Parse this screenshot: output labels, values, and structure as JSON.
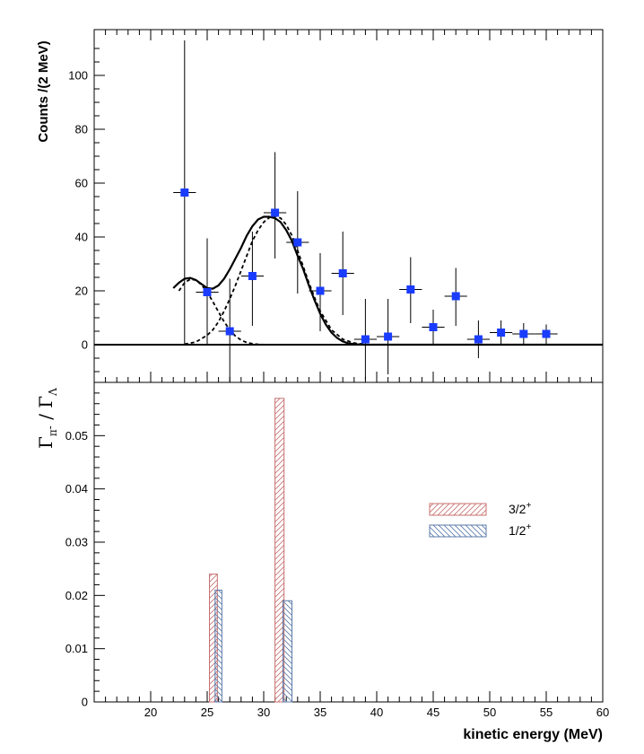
{
  "chart_data": [
    {
      "type": "scatter",
      "ylabel": "Counts /(2 MeV)",
      "xlim": [
        15,
        60
      ],
      "ylim": [
        -14,
        117
      ],
      "y_ticks": [
        0,
        20,
        40,
        60,
        80,
        100
      ],
      "y_tick_labels": [
        "0",
        "20",
        "40",
        "60",
        "80",
        "100"
      ],
      "series": [
        {
          "kind": "points_with_errors",
          "color": "#1a3cff",
          "x": [
            23,
            25,
            27,
            29,
            31,
            33,
            35,
            37,
            39,
            41,
            43,
            45,
            47,
            49,
            51,
            53,
            55
          ],
          "y": [
            56.5,
            19.5,
            5,
            25.5,
            49,
            38,
            20,
            26.5,
            2,
            3,
            20.5,
            6.5,
            18,
            2,
            4.5,
            4,
            4
          ],
          "y_low": [
            0,
            0,
            -14,
            7,
            32,
            19,
            5,
            11,
            -13,
            -11,
            8,
            0,
            7,
            -5,
            0,
            0,
            0
          ],
          "y_high": [
            113,
            39.5,
            24.5,
            42,
            71.5,
            57,
            34,
            42,
            17,
            17,
            32.5,
            13,
            28.5,
            9,
            9,
            8,
            7.5
          ],
          "x_err": 1
        },
        {
          "kind": "fit_total",
          "style": "solid",
          "x": [
            22,
            22.5,
            23,
            23.5,
            24,
            24.5,
            25,
            25.5,
            26,
            26.5,
            27,
            27.5,
            28,
            28.5,
            29,
            29.5,
            30,
            30.5,
            31,
            31.5,
            32,
            32.5,
            33,
            33.5,
            34,
            34.5,
            35,
            35.5,
            36,
            36.5,
            37,
            37.5,
            38,
            38.5,
            39,
            40,
            42,
            45,
            50,
            55,
            60
          ],
          "y": [
            21,
            23,
            24.5,
            24.8,
            24,
            22.5,
            21,
            20.8,
            22,
            24.5,
            28,
            32,
            36,
            40.5,
            44,
            46.5,
            47.5,
            47.5,
            47,
            45.5,
            42.5,
            38.5,
            33,
            28,
            22,
            16.5,
            11.5,
            7.5,
            4.5,
            2.5,
            1.2,
            0.5,
            0.2,
            0.05,
            0,
            0,
            0,
            0,
            0,
            0,
            0
          ]
        },
        {
          "kind": "fit_component_1",
          "style": "dashed",
          "x": [
            22.5,
            23,
            23.5,
            24,
            24.5,
            25,
            25.5,
            26,
            26.5,
            27,
            27.5,
            28,
            28.5,
            29,
            29.5,
            30,
            31
          ],
          "y": [
            20,
            23,
            24.3,
            24,
            22.2,
            19.5,
            16,
            12.2,
            8.5,
            5.5,
            3.2,
            1.7,
            0.8,
            0.35,
            0.15,
            0.05,
            0
          ]
        },
        {
          "kind": "fit_component_2",
          "style": "dashed",
          "x": [
            23,
            24,
            25,
            25.5,
            26,
            26.5,
            27,
            27.5,
            28,
            28.5,
            29,
            29.5,
            30,
            30.5,
            31,
            31.5,
            32,
            32.5,
            33,
            33.5,
            34,
            34.5,
            35,
            36,
            37,
            38,
            39
          ],
          "y": [
            0.2,
            1,
            3.5,
            5.5,
            8.5,
            12.5,
            17,
            22,
            27.5,
            33,
            38.5,
            42.5,
            45.5,
            47.2,
            47.8,
            47,
            44.5,
            40.5,
            35,
            29,
            23,
            17.5,
            12.5,
            5.5,
            2,
            0.6,
            0.1
          ]
        }
      ]
    },
    {
      "type": "bar",
      "ylabel": "Γπ- / ΓΛ",
      "ylabel_parts": {
        "left": "Γ",
        "left_sub": "π",
        "left_sup": "-",
        "slash": " / ",
        "right": "Γ",
        "right_sub": "Λ"
      },
      "xlabel": "kinetic energy (MeV)",
      "xlim": [
        15,
        60
      ],
      "ylim": [
        0,
        0.06
      ],
      "x_ticks": [
        20,
        25,
        30,
        35,
        40,
        45,
        50,
        55,
        60
      ],
      "x_tick_labels": [
        "20",
        "25",
        "30",
        "35",
        "40",
        "45",
        "50",
        "55",
        "60"
      ],
      "y_ticks": [
        0,
        0.01,
        0.02,
        0.03,
        0.04,
        0.05
      ],
      "y_tick_labels": [
        "0",
        "0.01",
        "0.02",
        "0.03",
        "0.04",
        "0.05"
      ],
      "series": [
        {
          "name": "3/2",
          "sup": "+",
          "color": "#c87070",
          "hatch": "forward",
          "bars": [
            {
              "x0": 25.2,
              "x1": 25.9,
              "value": 0.024
            },
            {
              "x0": 31.0,
              "x1": 31.8,
              "value": 0.057
            }
          ]
        },
        {
          "name": "1/2",
          "sup": "+",
          "color": "#5a7aa8",
          "hatch": "backward",
          "bars": [
            {
              "x0": 25.7,
              "x1": 26.3,
              "value": 0.021
            },
            {
              "x0": 31.7,
              "x1": 32.5,
              "value": 0.019
            }
          ]
        }
      ],
      "legend_position": "right"
    }
  ]
}
